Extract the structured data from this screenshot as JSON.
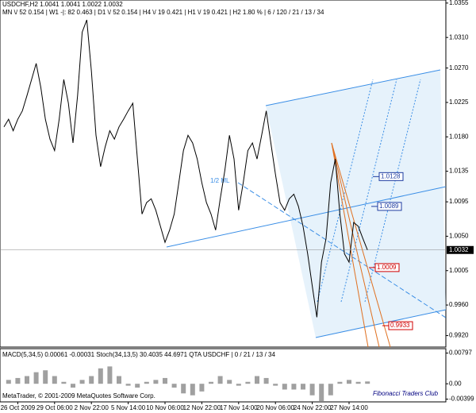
{
  "chart_data": [
    {
      "type": "line",
      "title": "USDCHF,H2 1.0041 1.0041 1.0022 1.0032",
      "subtitle": "MN \\/ 52  0.154 | W1 -|: 82  0.463 | D1 \\/ 52  0.154 | H4 \\/ 19  0.421 | H1 \\/ 19  0.421 | H2  1.80 %  | 6 / 120 / 21 / 13 / 34",
      "annotations": [
        "1/2 ML"
      ],
      "categories": [
        null,
        null,
        null,
        "26 Oct 2009",
        null,
        null,
        null,
        null,
        null,
        null,
        null,
        "29 Oct 06:00",
        null,
        null,
        null,
        null,
        null,
        null,
        null,
        "2 Nov 22:00",
        null,
        null,
        null,
        null,
        null,
        null,
        null,
        "5 Nov 14:00",
        null,
        null,
        null,
        null,
        null,
        null,
        null,
        "10 Nov 06:00",
        null,
        null,
        null,
        null,
        null,
        null,
        null,
        "12 Nov 22:00",
        null,
        null,
        null,
        null,
        null,
        null,
        null,
        "17 Nov 14:00",
        null,
        null,
        null,
        null,
        null,
        null,
        null,
        "20 Nov 06:00",
        null,
        null,
        null,
        null,
        null,
        null,
        null,
        "24 Nov 22:00",
        null,
        null,
        null,
        null,
        null,
        null,
        null,
        "27 Nov 14:00",
        null,
        null,
        null,
        null
      ],
      "values": [
        1.0193,
        1.0203,
        1.0188,
        1.0203,
        1.0214,
        1.0234,
        1.0255,
        1.0276,
        1.0245,
        1.0203,
        1.0177,
        1.0162,
        1.0203,
        1.0255,
        1.0224,
        1.0172,
        1.0234,
        1.0317,
        1.0333,
        1.0266,
        1.0182,
        1.0141,
        1.0167,
        1.0188,
        1.0177,
        1.0193,
        1.0203,
        1.0214,
        1.0224,
        1.0151,
        1.0079,
        1.0094,
        1.0099,
        1.0084,
        1.0063,
        1.0042,
        1.0058,
        1.0079,
        1.012,
        1.0162,
        1.0182,
        1.0172,
        1.0151,
        1.012,
        1.0094,
        1.0079,
        1.0058,
        1.0099,
        1.0136,
        1.0182,
        1.0151,
        1.0084,
        1.012,
        1.0162,
        1.0172,
        1.0151,
        1.0182,
        1.0214,
        1.0172,
        1.0131,
        1.0094,
        1.0084,
        1.0099,
        1.0105,
        1.0089,
        1.0063,
        1.0027,
        0.9985,
        0.9944,
        1.0016,
        1.0047,
        1.012,
        1.0151,
        1.0079,
        1.0027,
        1.0016,
        1.0068,
        1.0063,
        1.0047,
        1.0032
      ],
      "color": "#000000",
      "ylim": [
        0.9905,
        1.0359
      ],
      "yticks": [
        1.0355,
        {
          "value": 1.031,
          "label": "1.0310"
        },
        {
          "value": 1.027,
          "label": "1.0270"
        },
        1.0225,
        {
          "value": 1.018,
          "label": "1.0180"
        },
        1.0135,
        1.0095,
        {
          "value": 1.005,
          "label": "1.0050"
        },
        1.0005,
        {
          "value": 0.996,
          "label": "0.9960"
        },
        {
          "value": 0.992,
          "label": "0.9920"
        }
      ],
      "grid": false,
      "last_price": 1.0032,
      "price_labels": [
        {
          "value": 1.0128,
          "color": "#1e3ca0"
        },
        {
          "value": 1.0089,
          "color": "#1e3ca0"
        },
        {
          "value": 1.0009,
          "color": "#d00000"
        },
        {
          "value": 0.9933,
          "color": "#d00000"
        }
      ]
    },
    {
      "type": "bar",
      "title": "MACD(5,34,5) 0.00061 -0.00031 Stoch(34,13,5) 30.4035 44.6971 QTA USDCHF | 0 / 21 / 13 / 34",
      "annotations": [
        "MetaTrader, © 2001-2009 MetaQuotes Software Corp.",
        "Fibonacci Traders Club"
      ],
      "categories": [
        null,
        null,
        null,
        null,
        null,
        null,
        null,
        null,
        null,
        null,
        null,
        null,
        null,
        null,
        null,
        null,
        null,
        null,
        null,
        null,
        null,
        null,
        null,
        null,
        null,
        null,
        null,
        null,
        null,
        null,
        null,
        null,
        null,
        null,
        null,
        null,
        null,
        null,
        null,
        null
      ],
      "values": [
        0.001,
        0.0015,
        0.002,
        0.003,
        0.0035,
        0.002,
        0.0005,
        -0.001,
        0.001,
        0.002,
        0.004,
        0.0045,
        0.002,
        -0.0005,
        -0.001,
        0.0005,
        0.001,
        0.0015,
        -0.001,
        -0.0025,
        -0.003,
        -0.002,
        0.0005,
        0.002,
        0.001,
        -0.0005,
        0.0005,
        0.002,
        0.0015,
        -0.0005,
        -0.0015,
        -0.0015,
        -0.0015,
        -0.003,
        -0.0045,
        -0.003,
        0.0005,
        0.001,
        0.0005,
        0.0006
      ],
      "color": "#a0a0a0",
      "ylim": [
        -0.0045,
        0.0085
      ],
      "yticks": [
        0.00797,
        {
          "value": 0,
          "label": "0.00"
        },
        -0.00399
      ],
      "grid": false
    }
  ]
}
